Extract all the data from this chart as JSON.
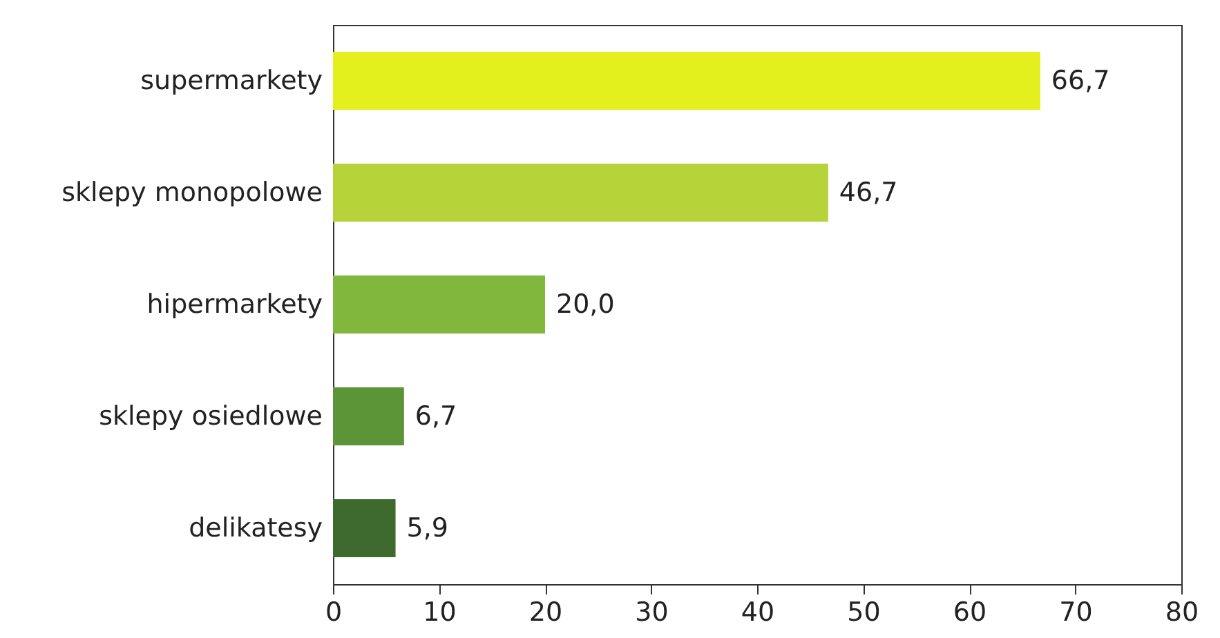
{
  "chart_data": {
    "type": "bar",
    "orientation": "horizontal",
    "categories": [
      "supermarkety",
      "sklepy monopolowe",
      "hipermarkety",
      "sklepy osiedlowe",
      "delikatesy"
    ],
    "values": [
      66.7,
      46.7,
      20.0,
      6.7,
      5.9
    ],
    "colors": [
      "#e4ef1e",
      "#b6d43a",
      "#80b73c",
      "#5c9438",
      "#3e6a2e"
    ],
    "value_labels": [
      "66,7",
      "46,7",
      "20,0",
      "6,7",
      "5,9"
    ],
    "xlim": [
      0,
      80
    ],
    "xticks": [
      0,
      10,
      20,
      30,
      40,
      50,
      60,
      70,
      80
    ],
    "grid": false
  }
}
